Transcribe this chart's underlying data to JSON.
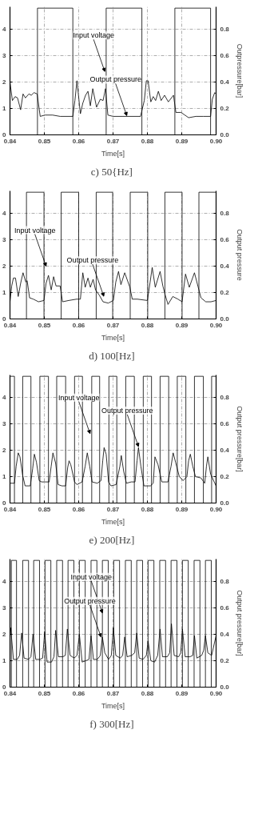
{
  "chart_data": [
    {
      "type": "line",
      "title": "c)  50{Hz]",
      "xlabel": "Time[s]",
      "y2label": "Outpressure[bar]",
      "xlim": [
        0.84,
        0.9
      ],
      "xticks": [
        {
          "value": 0.84,
          "label": "0.84"
        },
        {
          "value": 0.85,
          "label": "0.85"
        },
        {
          "value": 0.86,
          "label": "0.86"
        },
        {
          "value": 0.87,
          "label": "0.87"
        },
        {
          "value": 0.88,
          "label": "0.88"
        },
        {
          "value": 0.89,
          "label": "0.89"
        },
        {
          "value": 0.9,
          "label": "0.90"
        }
      ],
      "ylim": [
        0,
        4.85
      ],
      "yticks": [
        0,
        1,
        2,
        3,
        4
      ],
      "y2lim": [
        0,
        0.97
      ],
      "y2ticks": [
        {
          "value": 0,
          "label": "0.0"
        },
        {
          "value": 0.2,
          "label": "0.2"
        },
        {
          "value": 0.4,
          "label": "0.4"
        },
        {
          "value": 0.6,
          "label": "0.6"
        },
        {
          "value": 0.8,
          "label": "0.8"
        }
      ],
      "grid": true,
      "series": [
        {
          "type": "step",
          "color": "#000000",
          "x": [
            0.84,
            0.848,
            0.8583,
            0.868,
            0.8784,
            0.888,
            0.8984,
            0.9
          ],
          "values": [
            0,
            4.8,
            0,
            4.8,
            0,
            4.8,
            0,
            0
          ]
        },
        {
          "type": "line",
          "axis": "y2",
          "color": "#000000",
          "x": [
            0.84,
            0.8407,
            0.8415,
            0.8422,
            0.8431,
            0.8438,
            0.8445,
            0.8455,
            0.8462,
            0.847,
            0.8479,
            0.8488,
            0.8502,
            0.8524,
            0.8546,
            0.8583,
            0.8589,
            0.8595,
            0.8605,
            0.8612,
            0.862,
            0.8627,
            0.8634,
            0.8641,
            0.8652,
            0.8663,
            0.8671,
            0.8678,
            0.8685,
            0.87,
            0.8729,
            0.878,
            0.8791,
            0.8797,
            0.8802,
            0.881,
            0.8817,
            0.8824,
            0.8832,
            0.884,
            0.885,
            0.8861,
            0.8876,
            0.8883,
            0.8898,
            0.892,
            0.8941,
            0.8963,
            0.8984,
            0.8989,
            0.8996,
            0.9
          ],
          "values": [
            0.4,
            0.26,
            0.29,
            0.28,
            0.19,
            0.31,
            0.28,
            0.31,
            0.3,
            0.32,
            0.31,
            0.14,
            0.15,
            0.15,
            0.14,
            0.14,
            0.26,
            0.41,
            0.16,
            0.24,
            0.3,
            0.33,
            0.22,
            0.35,
            0.21,
            0.27,
            0.26,
            0.35,
            0.15,
            0.14,
            0.14,
            0.14,
            0.26,
            0.41,
            0.41,
            0.25,
            0.29,
            0.26,
            0.33,
            0.26,
            0.3,
            0.25,
            0.3,
            0.17,
            0.17,
            0.13,
            0.14,
            0.14,
            0.14,
            0.27,
            0.32,
            0.31
          ]
        }
      ],
      "annotations": [
        {
          "text": "Input voltage",
          "x": 0.8676,
          "y": 2.4
        },
        {
          "text": "Output pressure",
          "x": 0.874,
          "y": 0.73
        }
      ]
    },
    {
      "type": "line",
      "title": "d)  100[Hz]",
      "xlabel": "Time[s]",
      "y2label": "Output pressure",
      "xlim": [
        0.84,
        0.9
      ],
      "xticks": [
        {
          "value": 0.84,
          "label": "0.84"
        },
        {
          "value": 0.85,
          "label": "0.85"
        },
        {
          "value": 0.86,
          "label": "0.86"
        },
        {
          "value": 0.87,
          "label": "0.87"
        },
        {
          "value": 0.88,
          "label": "0.88"
        },
        {
          "value": 0.89,
          "label": "0.89"
        },
        {
          "value": 0.9,
          "label": "0.90"
        }
      ],
      "ylim": [
        0,
        4.85
      ],
      "yticks": [
        0,
        1,
        2,
        3,
        4
      ],
      "y2lim": [
        0,
        0.97
      ],
      "y2ticks": [
        {
          "value": 0,
          "label": "0.0"
        },
        {
          "value": 0.2,
          "label": "0.2"
        },
        {
          "value": 0.4,
          "label": "0.4"
        },
        {
          "value": 0.6,
          "label": "0.6"
        },
        {
          "value": 0.8,
          "label": "0.8"
        }
      ],
      "grid": true,
      "series": [
        {
          "type": "step",
          "color": "#000000",
          "x": [
            0.84,
            0.8448,
            0.8499,
            0.8549,
            0.86,
            0.8651,
            0.8699,
            0.875,
            0.8801,
            0.8851,
            0.8901,
            0.895,
            0.9
          ],
          "values": [
            0,
            4.8,
            0,
            4.8,
            0,
            4.8,
            0,
            4.8,
            0,
            4.8,
            0,
            4.8,
            4.8
          ]
        },
        {
          "type": "line",
          "axis": "y2",
          "color": "#000000",
          "x": [
            0.84,
            0.8405,
            0.841,
            0.8416,
            0.8424,
            0.8431,
            0.8438,
            0.8446,
            0.845,
            0.8457,
            0.8468,
            0.8483,
            0.8499,
            0.8505,
            0.8512,
            0.852,
            0.8527,
            0.8534,
            0.8546,
            0.8553,
            0.8571,
            0.8594,
            0.8605,
            0.8612,
            0.8619,
            0.8627,
            0.8634,
            0.8642,
            0.8649,
            0.866,
            0.8671,
            0.8686,
            0.8701,
            0.8708,
            0.8716,
            0.8723,
            0.8734,
            0.8749,
            0.8756,
            0.8771,
            0.88,
            0.8808,
            0.8814,
            0.8823,
            0.8837,
            0.8845,
            0.8852,
            0.886,
            0.8874,
            0.8889,
            0.8901,
            0.8911,
            0.8922,
            0.8937,
            0.8948,
            0.8956,
            0.897,
            0.8985,
            0.9
          ],
          "values": [
            0.13,
            0.25,
            0.31,
            0.31,
            0.17,
            0.27,
            0.35,
            0.28,
            0.29,
            0.16,
            0.15,
            0.13,
            0.14,
            0.27,
            0.33,
            0.22,
            0.32,
            0.25,
            0.25,
            0.13,
            0.14,
            0.15,
            0.15,
            0.35,
            0.24,
            0.31,
            0.24,
            0.3,
            0.22,
            0.18,
            0.13,
            0.12,
            0.14,
            0.28,
            0.36,
            0.26,
            0.35,
            0.24,
            0.15,
            0.15,
            0.14,
            0.28,
            0.39,
            0.24,
            0.36,
            0.25,
            0.18,
            0.11,
            0.17,
            0.15,
            0.13,
            0.34,
            0.24,
            0.35,
            0.24,
            0.16,
            0.13,
            0.13,
            0.14
          ]
        }
      ],
      "annotations": [
        {
          "text": "Input voltage",
          "x": 0.8505,
          "y": 2.0
        },
        {
          "text": "Output pressure",
          "x": 0.8673,
          "y": 0.86
        }
      ]
    },
    {
      "type": "line",
      "title": "e)  200[Hz]",
      "xlabel": "Time[s]",
      "y2label": "Output pressure[bar]",
      "xlim": [
        0.84,
        0.9
      ],
      "xticks": [
        {
          "value": 0.84,
          "label": "0.84"
        },
        {
          "value": 0.85,
          "label": "0.85"
        },
        {
          "value": 0.86,
          "label": "0.86"
        },
        {
          "value": 0.87,
          "label": "0.87"
        },
        {
          "value": 0.88,
          "label": "0.88"
        },
        {
          "value": 0.89,
          "label": "0.89"
        },
        {
          "value": 0.9,
          "label": "0.90"
        }
      ],
      "ylim": [
        0,
        4.85
      ],
      "yticks": [
        0,
        1,
        2,
        3,
        4
      ],
      "y2lim": [
        0,
        0.97
      ],
      "y2ticks": [
        {
          "value": 0,
          "label": "0.0"
        },
        {
          "value": 0.2,
          "label": "0.2"
        },
        {
          "value": 0.4,
          "label": "0.4"
        },
        {
          "value": 0.6,
          "label": "0.6"
        },
        {
          "value": 0.8,
          "label": "0.8"
        }
      ],
      "grid": true,
      "series": [
        {
          "type": "step",
          "color": "#000000",
          "x": [
            0.84,
            0.8413,
            0.8437,
            0.8461,
            0.8487,
            0.8512,
            0.8536,
            0.8562,
            0.8588,
            0.8611,
            0.8638,
            0.8661,
            0.8688,
            0.8711,
            0.8737,
            0.8762,
            0.8788,
            0.8812,
            0.8837,
            0.8862,
            0.8887,
            0.8912,
            0.8937,
            0.8963,
            0.8987,
            0.9
          ],
          "values": [
            4.8,
            0,
            4.8,
            0,
            4.8,
            0,
            4.8,
            0,
            4.8,
            0,
            4.8,
            0,
            4.8,
            0,
            4.8,
            0,
            4.8,
            0,
            4.8,
            0,
            4.8,
            0,
            4.8,
            0,
            4.8,
            4.8
          ]
        },
        {
          "type": "line",
          "axis": "y2",
          "color": "#000000",
          "x": [
            0.84,
            0.8413,
            0.8418,
            0.8424,
            0.8429,
            0.8437,
            0.8444,
            0.8459,
            0.8466,
            0.8471,
            0.8477,
            0.8485,
            0.8492,
            0.8503,
            0.8514,
            0.852,
            0.8525,
            0.8533,
            0.854,
            0.8551,
            0.8562,
            0.8568,
            0.8572,
            0.8577,
            0.8588,
            0.8595,
            0.861,
            0.8619,
            0.8625,
            0.8632,
            0.8639,
            0.8654,
            0.8665,
            0.867,
            0.8674,
            0.868,
            0.8687,
            0.8694,
            0.8709,
            0.872,
            0.8724,
            0.8731,
            0.8739,
            0.8753,
            0.8764,
            0.877,
            0.8774,
            0.8781,
            0.879,
            0.8809,
            0.8817,
            0.8822,
            0.8831,
            0.8842,
            0.886,
            0.8869,
            0.8875,
            0.8882,
            0.8893,
            0.8904,
            0.8915,
            0.892,
            0.8925,
            0.8932,
            0.894,
            0.8956,
            0.8967,
            0.8972,
            0.8976,
            0.8984,
            0.8989,
            0.9
          ],
          "values": [
            0.15,
            0.15,
            0.28,
            0.38,
            0.35,
            0.21,
            0.13,
            0.13,
            0.26,
            0.37,
            0.31,
            0.17,
            0.16,
            0.16,
            0.16,
            0.28,
            0.38,
            0.3,
            0.14,
            0.13,
            0.13,
            0.27,
            0.32,
            0.29,
            0.16,
            0.14,
            0.16,
            0.28,
            0.38,
            0.28,
            0.16,
            0.15,
            0.17,
            0.32,
            0.42,
            0.37,
            0.16,
            0.13,
            0.14,
            0.28,
            0.36,
            0.24,
            0.15,
            0.16,
            0.16,
            0.32,
            0.42,
            0.28,
            0.13,
            0.13,
            0.15,
            0.35,
            0.29,
            0.16,
            0.16,
            0.28,
            0.38,
            0.31,
            0.2,
            0.17,
            0.2,
            0.32,
            0.37,
            0.28,
            0.2,
            0.19,
            0.15,
            0.28,
            0.35,
            0.22,
            0.19,
            0.13
          ]
        }
      ],
      "annotations": [
        {
          "text": "Input voltage",
          "x": 0.8633,
          "y": 2.63
        },
        {
          "text": "Output pressure",
          "x": 0.8774,
          "y": 2.14
        }
      ]
    },
    {
      "type": "line",
      "title": "f)  300[Hz]",
      "xlabel": "Time[s]",
      "y2label": "Output pressure[bar]",
      "xlim": [
        0.84,
        0.9
      ],
      "xticks": [
        {
          "value": 0.84,
          "label": "0.84"
        },
        {
          "value": 0.85,
          "label": "0.85"
        },
        {
          "value": 0.86,
          "label": "0.86"
        },
        {
          "value": 0.87,
          "label": "0.87"
        },
        {
          "value": 0.88,
          "label": "0.88"
        },
        {
          "value": 0.89,
          "label": "0.89"
        },
        {
          "value": 0.9,
          "label": "0.90"
        }
      ],
      "ylim": [
        0,
        4.85
      ],
      "yticks": [
        0,
        1,
        2,
        3,
        4
      ],
      "y2lim": [
        0,
        0.97
      ],
      "y2ticks": [
        {
          "value": 0,
          "label": "0.0"
        },
        {
          "value": 0.2,
          "label": "0.2"
        },
        {
          "value": 0.4,
          "label": "0.4"
        },
        {
          "value": 0.6,
          "label": "0.6"
        },
        {
          "value": 0.8,
          "label": "0.8"
        }
      ],
      "grid": true,
      "series": [
        {
          "type": "step",
          "color": "#000000",
          "x": [
            0.84,
            0.8404,
            0.8419,
            0.8437,
            0.8454,
            0.8469,
            0.8486,
            0.8502,
            0.8519,
            0.8536,
            0.8553,
            0.8569,
            0.8586,
            0.8602,
            0.8619,
            0.8636,
            0.8653,
            0.8669,
            0.8686,
            0.8702,
            0.8719,
            0.8736,
            0.8753,
            0.8769,
            0.8786,
            0.8802,
            0.8819,
            0.8836,
            0.8853,
            0.8869,
            0.8886,
            0.8902,
            0.8919,
            0.8936,
            0.8953,
            0.8969,
            0.8986,
            0.9
          ],
          "values": [
            0,
            4.8,
            0,
            4.8,
            0,
            4.8,
            0,
            4.8,
            0,
            4.8,
            0,
            4.8,
            0,
            4.8,
            0,
            4.8,
            0,
            4.8,
            0,
            4.8,
            0,
            4.8,
            0,
            4.8,
            0,
            4.8,
            0,
            4.8,
            0,
            4.8,
            0,
            4.8,
            0,
            4.8,
            0,
            4.8,
            0,
            0
          ]
        },
        {
          "type": "line",
          "axis": "y2",
          "color": "#000000",
          "x": [
            0.84,
            0.8402,
            0.841,
            0.8421,
            0.8428,
            0.8434,
            0.8441,
            0.8454,
            0.8461,
            0.8467,
            0.8475,
            0.8487,
            0.8495,
            0.8501,
            0.8508,
            0.8521,
            0.8528,
            0.8533,
            0.8541,
            0.8554,
            0.8561,
            0.8567,
            0.8575,
            0.8587,
            0.8595,
            0.8602,
            0.861,
            0.8621,
            0.863,
            0.8636,
            0.8643,
            0.8654,
            0.8663,
            0.8669,
            0.8676,
            0.8687,
            0.8695,
            0.8701,
            0.8708,
            0.8721,
            0.8728,
            0.8734,
            0.8741,
            0.8754,
            0.8763,
            0.8769,
            0.8776,
            0.8787,
            0.8797,
            0.8802,
            0.881,
            0.8821,
            0.883,
            0.8837,
            0.8844,
            0.8858,
            0.8865,
            0.887,
            0.8878,
            0.8891,
            0.8897,
            0.8902,
            0.891,
            0.8924,
            0.8932,
            0.8937,
            0.8944,
            0.8958,
            0.8964,
            0.8969,
            0.8976,
            0.8987,
            0.9
          ],
          "values": [
            0.39,
            0.45,
            0.21,
            0.21,
            0.24,
            0.41,
            0.22,
            0.21,
            0.23,
            0.4,
            0.21,
            0.21,
            0.22,
            0.42,
            0.19,
            0.19,
            0.23,
            0.43,
            0.23,
            0.23,
            0.24,
            0.44,
            0.24,
            0.22,
            0.24,
            0.4,
            0.19,
            0.2,
            0.21,
            0.39,
            0.21,
            0.21,
            0.24,
            0.38,
            0.26,
            0.21,
            0.24,
            0.45,
            0.24,
            0.22,
            0.24,
            0.38,
            0.23,
            0.24,
            0.26,
            0.41,
            0.22,
            0.21,
            0.24,
            0.35,
            0.2,
            0.19,
            0.24,
            0.44,
            0.23,
            0.23,
            0.26,
            0.48,
            0.24,
            0.23,
            0.26,
            0.44,
            0.23,
            0.23,
            0.24,
            0.39,
            0.22,
            0.24,
            0.28,
            0.39,
            0.26,
            0.24,
            0.39
          ]
        }
      ],
      "annotations": [
        {
          "text": "Input voltage",
          "x": 0.8669,
          "y": 2.81
        },
        {
          "text": "Output pressure",
          "x": 0.8665,
          "y": 1.9
        }
      ]
    }
  ]
}
